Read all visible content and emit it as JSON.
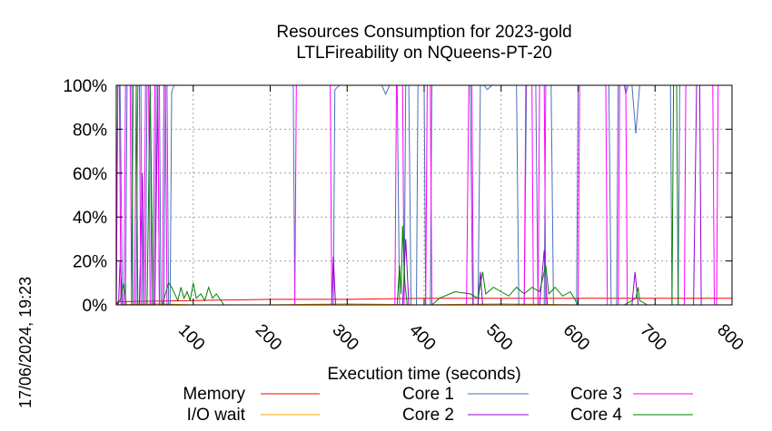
{
  "chart_data": {
    "type": "line",
    "title": "Resources Consumption for 2023-gold",
    "subtitle": "LTLFireability on NQueens-PT-20",
    "xlabel": "Execution time (seconds)",
    "ylabel": "",
    "xlim": [
      0,
      800
    ],
    "ylim": [
      0,
      100
    ],
    "x_ticks": [
      100,
      200,
      300,
      400,
      500,
      600,
      700,
      800
    ],
    "y_ticks": [
      0,
      20,
      40,
      60,
      80,
      100
    ],
    "y_tick_labels": [
      "0%",
      "20%",
      "40%",
      "60%",
      "80%",
      "100%"
    ],
    "grid": true,
    "legend_position": "bottom",
    "timestamp": "17/06/2024, 19:23",
    "series": [
      {
        "name": "Memory",
        "color": "#ff0000",
        "points": [
          [
            0,
            0
          ],
          [
            2,
            1.5
          ],
          [
            10,
            1.5
          ],
          [
            100,
            2
          ],
          [
            200,
            2.5
          ],
          [
            300,
            2.5
          ],
          [
            400,
            3
          ],
          [
            500,
            3
          ],
          [
            600,
            3
          ],
          [
            700,
            3
          ],
          [
            800,
            3
          ]
        ]
      },
      {
        "name": "I/O wait",
        "color": "#ffa500",
        "points": [
          [
            0,
            0
          ],
          [
            50,
            0.5
          ],
          [
            100,
            0
          ],
          [
            200,
            0
          ],
          [
            300,
            0.5
          ],
          [
            400,
            0
          ],
          [
            500,
            0.5
          ],
          [
            600,
            0
          ],
          [
            700,
            0
          ],
          [
            800,
            0
          ]
        ]
      },
      {
        "name": "Core 1",
        "color": "#4a6fb5",
        "points": [
          [
            0,
            0
          ],
          [
            2,
            100
          ],
          [
            5,
            100
          ],
          [
            8,
            0
          ],
          [
            12,
            0
          ],
          [
            14,
            100
          ],
          [
            20,
            100
          ],
          [
            22,
            0
          ],
          [
            26,
            0
          ],
          [
            28,
            100
          ],
          [
            32,
            100
          ],
          [
            34,
            0
          ],
          [
            38,
            0
          ],
          [
            40,
            100
          ],
          [
            44,
            100
          ],
          [
            46,
            0
          ],
          [
            50,
            0
          ],
          [
            52,
            100
          ],
          [
            56,
            100
          ],
          [
            58,
            0
          ],
          [
            62,
            0
          ],
          [
            64,
            100
          ],
          [
            66,
            100
          ],
          [
            68,
            0
          ],
          [
            70,
            0
          ],
          [
            72,
            97
          ],
          [
            75,
            100
          ],
          [
            230,
            100
          ],
          [
            232,
            0
          ],
          [
            282,
            0
          ],
          [
            284,
            98
          ],
          [
            290,
            100
          ],
          [
            345,
            100
          ],
          [
            350,
            96
          ],
          [
            355,
            100
          ],
          [
            365,
            100
          ],
          [
            368,
            0
          ],
          [
            374,
            0
          ],
          [
            376,
            100
          ],
          [
            380,
            100
          ],
          [
            383,
            0
          ],
          [
            390,
            0
          ],
          [
            392,
            100
          ],
          [
            400,
            100
          ],
          [
            402,
            0
          ],
          [
            408,
            0
          ],
          [
            410,
            100
          ],
          [
            460,
            100
          ],
          [
            463,
            0
          ],
          [
            470,
            0
          ],
          [
            473,
            100
          ],
          [
            478,
            100
          ],
          [
            482,
            98
          ],
          [
            488,
            100
          ],
          [
            520,
            100
          ],
          [
            523,
            0
          ],
          [
            530,
            0
          ],
          [
            533,
            100
          ],
          [
            545,
            100
          ],
          [
            548,
            0
          ],
          [
            556,
            0
          ],
          [
            558,
            100
          ],
          [
            565,
            100
          ],
          [
            568,
            0
          ],
          [
            598,
            0
          ],
          [
            600,
            100
          ],
          [
            640,
            100
          ],
          [
            643,
            0
          ],
          [
            650,
            0
          ],
          [
            652,
            100
          ],
          [
            660,
            100
          ],
          [
            662,
            96
          ],
          [
            665,
            100
          ],
          [
            670,
            100
          ],
          [
            675,
            78
          ],
          [
            680,
            100
          ],
          [
            720,
            100
          ],
          [
            722,
            0
          ],
          [
            730,
            0
          ],
          [
            732,
            100
          ],
          [
            800,
            100
          ]
        ]
      },
      {
        "name": "Core 2",
        "color": "#9400d3",
        "points": [
          [
            0,
            0
          ],
          [
            3,
            0
          ],
          [
            5,
            20
          ],
          [
            8,
            0
          ],
          [
            30,
            0
          ],
          [
            34,
            60
          ],
          [
            36,
            0
          ],
          [
            50,
            0
          ],
          [
            54,
            100
          ],
          [
            56,
            0
          ],
          [
            280,
            0
          ],
          [
            282,
            22
          ],
          [
            285,
            0
          ],
          [
            372,
            0
          ],
          [
            376,
            30
          ],
          [
            380,
            0
          ],
          [
            470,
            0
          ],
          [
            473,
            15
          ],
          [
            476,
            0
          ],
          [
            550,
            0
          ],
          [
            556,
            25
          ],
          [
            560,
            0
          ],
          [
            670,
            0
          ],
          [
            674,
            15
          ],
          [
            678,
            0
          ],
          [
            750,
            0
          ],
          [
            754,
            100
          ],
          [
            758,
            100
          ],
          [
            760,
            0
          ],
          [
            800,
            0
          ]
        ]
      },
      {
        "name": "Core 3",
        "color": "#ff00ff",
        "points": [
          [
            0,
            0
          ],
          [
            2,
            100
          ],
          [
            4,
            100
          ],
          [
            6,
            0
          ],
          [
            10,
            0
          ],
          [
            12,
            100
          ],
          [
            18,
            100
          ],
          [
            20,
            0
          ],
          [
            24,
            0
          ],
          [
            26,
            100
          ],
          [
            30,
            100
          ],
          [
            32,
            0
          ],
          [
            36,
            0
          ],
          [
            38,
            100
          ],
          [
            42,
            100
          ],
          [
            44,
            0
          ],
          [
            48,
            0
          ],
          [
            50,
            100
          ],
          [
            54,
            100
          ],
          [
            56,
            0
          ],
          [
            60,
            0
          ],
          [
            62,
            100
          ],
          [
            64,
            100
          ],
          [
            66,
            0
          ],
          [
            232,
            0
          ],
          [
            234,
            100
          ],
          [
            278,
            100
          ],
          [
            280,
            0
          ],
          [
            362,
            0
          ],
          [
            364,
            100
          ],
          [
            372,
            100
          ],
          [
            374,
            0
          ],
          [
            402,
            0
          ],
          [
            404,
            100
          ],
          [
            408,
            100
          ],
          [
            410,
            0
          ],
          [
            455,
            0
          ],
          [
            458,
            100
          ],
          [
            462,
            100
          ],
          [
            464,
            0
          ],
          [
            530,
            0
          ],
          [
            532,
            100
          ],
          [
            540,
            100
          ],
          [
            542,
            0
          ],
          [
            548,
            0
          ],
          [
            550,
            100
          ],
          [
            556,
            100
          ],
          [
            558,
            0
          ],
          [
            600,
            0
          ],
          [
            602,
            100
          ],
          [
            636,
            100
          ],
          [
            638,
            0
          ],
          [
            652,
            0
          ],
          [
            654,
            100
          ],
          [
            662,
            100
          ],
          [
            664,
            0
          ],
          [
            700,
            0
          ],
          [
            702,
            0
          ],
          [
            738,
            0
          ],
          [
            740,
            100
          ],
          [
            775,
            100
          ],
          [
            777,
            0
          ],
          [
            780,
            0
          ],
          [
            782,
            100
          ],
          [
            800,
            100
          ]
        ]
      },
      {
        "name": "Core 4",
        "color": "#008000",
        "points": [
          [
            0,
            0
          ],
          [
            5,
            2
          ],
          [
            10,
            10
          ],
          [
            13,
            0
          ],
          [
            20,
            0
          ],
          [
            22,
            100
          ],
          [
            26,
            100
          ],
          [
            28,
            0
          ],
          [
            40,
            0
          ],
          [
            44,
            100
          ],
          [
            48,
            0
          ],
          [
            60,
            0
          ],
          [
            64,
            5
          ],
          [
            68,
            10
          ],
          [
            72,
            8
          ],
          [
            76,
            5
          ],
          [
            80,
            2
          ],
          [
            84,
            8
          ],
          [
            88,
            3
          ],
          [
            92,
            6
          ],
          [
            96,
            2
          ],
          [
            100,
            10
          ],
          [
            104,
            3
          ],
          [
            110,
            5
          ],
          [
            115,
            2
          ],
          [
            120,
            8
          ],
          [
            125,
            3
          ],
          [
            130,
            5
          ],
          [
            140,
            0
          ],
          [
            200,
            0
          ],
          [
            300,
            0
          ],
          [
            365,
            0
          ],
          [
            368,
            18
          ],
          [
            370,
            5
          ],
          [
            372,
            36
          ],
          [
            375,
            10
          ],
          [
            378,
            0
          ],
          [
            400,
            0
          ],
          [
            410,
            0
          ],
          [
            420,
            3
          ],
          [
            440,
            6
          ],
          [
            460,
            5
          ],
          [
            470,
            3
          ],
          [
            476,
            15
          ],
          [
            480,
            5
          ],
          [
            490,
            8
          ],
          [
            500,
            6
          ],
          [
            510,
            4
          ],
          [
            520,
            8
          ],
          [
            530,
            5
          ],
          [
            540,
            8
          ],
          [
            550,
            6
          ],
          [
            558,
            18
          ],
          [
            562,
            5
          ],
          [
            570,
            8
          ],
          [
            580,
            4
          ],
          [
            590,
            6
          ],
          [
            600,
            0
          ],
          [
            640,
            0
          ],
          [
            650,
            0
          ],
          [
            660,
            0
          ],
          [
            675,
            3
          ],
          [
            678,
            8
          ],
          [
            680,
            2
          ],
          [
            690,
            0
          ],
          [
            700,
            0
          ],
          [
            710,
            0
          ],
          [
            722,
            0
          ],
          [
            724,
            100
          ],
          [
            728,
            100
          ],
          [
            730,
            0
          ],
          [
            800,
            0
          ]
        ]
      }
    ]
  }
}
